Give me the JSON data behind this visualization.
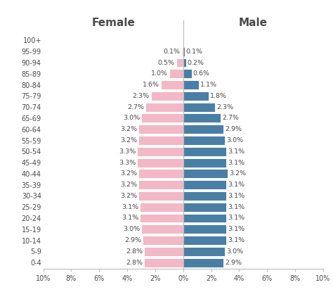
{
  "age_groups": [
    "0-4",
    "5-9",
    "10-14",
    "15-19",
    "20-24",
    "25-29",
    "30-34",
    "35-39",
    "40-44",
    "45-49",
    "50-54",
    "55-59",
    "60-64",
    "65-69",
    "70-74",
    "75-79",
    "80-84",
    "85-89",
    "90-94",
    "95-99",
    "100+"
  ],
  "female": [
    2.8,
    2.8,
    2.9,
    3.0,
    3.1,
    3.1,
    3.2,
    3.2,
    3.2,
    3.3,
    3.3,
    3.2,
    3.2,
    3.0,
    2.7,
    2.3,
    1.6,
    1.0,
    0.5,
    0.1,
    0.0
  ],
  "male": [
    2.9,
    3.0,
    3.1,
    3.1,
    3.1,
    3.1,
    3.1,
    3.1,
    3.2,
    3.1,
    3.1,
    3.0,
    2.9,
    2.7,
    2.3,
    1.8,
    1.1,
    0.6,
    0.2,
    0.1,
    0.0
  ],
  "female_color": "#f2b8c6",
  "male_color": "#4a7fa5",
  "title_female": "Female",
  "title_male": "Male",
  "xlim": 10,
  "xtick_positions": [
    -10,
    -8,
    -6,
    -4,
    -2,
    0,
    2,
    4,
    6,
    8,
    10
  ],
  "xtick_labels": [
    "10%",
    "8%",
    "6%",
    "4%",
    "2%",
    "0%",
    "2%",
    "4%",
    "6%",
    "8%",
    "10%"
  ],
  "background_color": "#ffffff",
  "bar_edge_color": "#ffffff",
  "text_color": "#4a4a4a",
  "bar_height": 0.82,
  "label_fontsize": 6.8,
  "title_fontsize": 11,
  "ytick_fontsize": 7.0,
  "xtick_fontsize": 7.0
}
